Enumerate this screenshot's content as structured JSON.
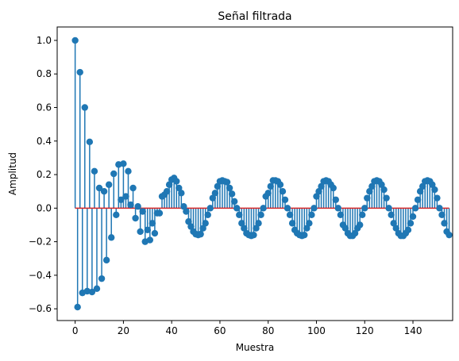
{
  "chart_data": {
    "type": "stem",
    "title": "Señal filtrada",
    "xlabel": "Muestra",
    "ylabel": "Amplitud",
    "xlim": [
      -7.45,
      156.45
    ],
    "ylim": [
      -0.67,
      1.08
    ],
    "xticks": [
      0,
      20,
      40,
      60,
      80,
      100,
      120,
      140
    ],
    "yticks": [
      -0.6,
      -0.4,
      -0.2,
      0.0,
      0.2,
      0.4,
      0.6,
      0.8,
      1.0
    ],
    "ytick_labels": [
      "−0.6",
      "−0.4",
      "−0.2",
      "0.0",
      "0.2",
      "0.4",
      "0.6",
      "0.8",
      "1.0"
    ],
    "grid": false,
    "baseline": 0,
    "stem_color": "#1f77b4",
    "baseline_color": "#d62728",
    "x_start": 0,
    "x_step": 1,
    "values": [
      1.0,
      -0.59,
      0.81,
      -0.505,
      0.6,
      -0.495,
      0.395,
      -0.5,
      0.22,
      -0.48,
      0.12,
      -0.42,
      0.1,
      -0.31,
      0.14,
      -0.175,
      0.205,
      -0.04,
      0.26,
      0.05,
      0.265,
      0.07,
      0.22,
      0.02,
      0.12,
      -0.06,
      0.01,
      -0.14,
      -0.02,
      -0.2,
      -0.13,
      -0.19,
      -0.09,
      -0.15,
      -0.03,
      -0.03,
      0.07,
      0.08,
      0.1,
      0.14,
      0.17,
      0.18,
      0.16,
      0.12,
      0.09,
      0.01,
      -0.02,
      -0.08,
      -0.11,
      -0.14,
      -0.155,
      -0.16,
      -0.155,
      -0.12,
      -0.09,
      -0.04,
      0.0,
      0.06,
      0.09,
      0.13,
      0.16,
      0.165,
      0.16,
      0.155,
      0.12,
      0.085,
      0.04,
      0.0,
      -0.04,
      -0.09,
      -0.12,
      -0.15,
      -0.16,
      -0.165,
      -0.16,
      -0.12,
      -0.09,
      -0.04,
      0.0,
      0.07,
      0.09,
      0.13,
      0.165,
      0.165,
      0.16,
      0.14,
      0.1,
      0.05,
      0.0,
      -0.04,
      -0.09,
      -0.13,
      -0.15,
      -0.16,
      -0.165,
      -0.16,
      -0.12,
      -0.09,
      -0.04,
      0.0,
      0.07,
      0.1,
      0.13,
      0.16,
      0.165,
      0.16,
      0.14,
      0.12,
      0.05,
      0.0,
      -0.04,
      -0.1,
      -0.12,
      -0.15,
      -0.165,
      -0.165,
      -0.15,
      -0.12,
      -0.1,
      -0.04,
      0.0,
      0.06,
      0.1,
      0.13,
      0.16,
      0.165,
      0.16,
      0.14,
      0.11,
      0.06,
      0.0,
      -0.04,
      -0.09,
      -0.12,
      -0.15,
      -0.165,
      -0.165,
      -0.15,
      -0.13,
      -0.09,
      -0.05,
      0.0,
      0.05,
      0.1,
      0.13,
      0.16,
      0.165,
      0.16,
      0.14,
      0.11,
      0.06,
      0.0,
      -0.04,
      -0.09,
      -0.14,
      -0.16
    ]
  }
}
